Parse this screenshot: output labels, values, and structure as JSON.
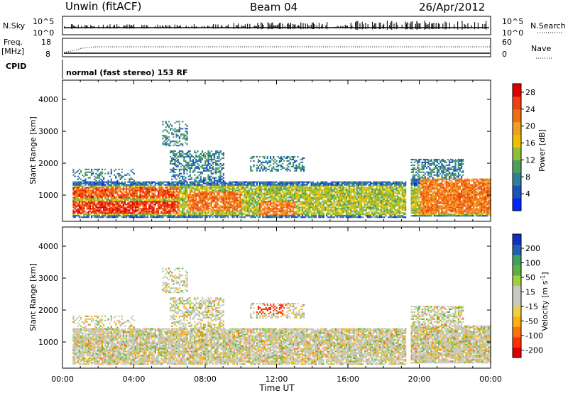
{
  "header": {
    "station": "Unwin (fitACF)",
    "beam": "Beam 04",
    "date": "26/Apr/2012"
  },
  "strip": {
    "nsky_label": "N.Sky",
    "nsky_ticks": [
      "10^5",
      "10^0"
    ],
    "nsearch_label": "N.Search",
    "nsearch_ticks": [
      "10^5",
      "10^0"
    ],
    "freq_label": "Freq.",
    "freq_unit": "[MHz]",
    "freq_ticks": [
      "18",
      "8"
    ],
    "nave_label": "Nave",
    "nave_ticks": [
      "60",
      "0"
    ],
    "cpid_label": "CPID",
    "cpid_text": "normal (fast stereo) 153 RF"
  },
  "colors": {
    "power": [
      "#0026ff",
      "#1f4fb8",
      "#2f7f96",
      "#4f9f5a",
      "#8fbf3a",
      "#f0c000",
      "#f0a020",
      "#f07010",
      "#f04010",
      "#e00000"
    ],
    "velocity": [
      "#e00000",
      "#ff3000",
      "#ff7010",
      "#ffb010",
      "#f0d040",
      "#c8c8c0",
      "#c8c8c0",
      "#a0d040",
      "#60b040",
      "#40a060",
      "#2060b0",
      "#1030c0"
    ],
    "gray_scatter": "#c8c8c0"
  },
  "chart_data": [
    {
      "type": "heatmap",
      "name": "power",
      "ylabel": "Slant Range [km]",
      "xlabel": "",
      "x_ticks": [
        "00:00",
        "04:00",
        "08:00",
        "12:00",
        "16:00",
        "20:00",
        "00:00"
      ],
      "xlim_hours": [
        0,
        24
      ],
      "y_ticks": [
        1000,
        2000,
        3000,
        4000
      ],
      "ylim_km": [
        180,
        4600
      ],
      "colorbar": {
        "label": "Power [dB]",
        "ticks": [
          4,
          8,
          12,
          16,
          20,
          24,
          28
        ],
        "range": [
          0,
          30
        ]
      },
      "features": [
        {
          "t": [
            0.5,
            6.5
          ],
          "km": [
            380,
            1350
          ],
          "note": "strong band"
        },
        {
          "t": [
            7.5,
            10.0
          ],
          "km": [
            450,
            1400
          ]
        },
        {
          "t": [
            11.0,
            13.0
          ],
          "km": [
            350,
            900
          ]
        },
        {
          "t": [
            19.5,
            24.0
          ],
          "km": [
            380,
            2000
          ]
        }
      ]
    },
    {
      "type": "heatmap",
      "name": "velocity",
      "ylabel": "Slant Range [km]",
      "xlabel": "Time UT",
      "x_ticks": [
        "00:00",
        "04:00",
        "08:00",
        "12:00",
        "16:00",
        "20:00",
        "00:00"
      ],
      "xlim_hours": [
        0,
        24
      ],
      "y_ticks": [
        1000,
        2000,
        3000,
        4000
      ],
      "ylim_km": [
        180,
        4600
      ],
      "colorbar": {
        "label": "Velocity [m s^-1]",
        "ticks": [
          200,
          100,
          50,
          15,
          -15,
          -50,
          -100,
          -200
        ],
        "range": [
          -250,
          250
        ]
      },
      "features": [
        {
          "t": [
            10.7,
            12.5
          ],
          "km": [
            1900,
            2100
          ],
          "note": "red patch"
        },
        {
          "t": [
            0.5,
            24.0
          ],
          "km": [
            250,
            1600
          ],
          "note": "gray ground scatter"
        }
      ]
    }
  ],
  "texts": {
    "power_cb_label": "Power [dB]",
    "velocity_cb_label_main": "Velocity [m s",
    "velocity_cb_label_sup": "-1",
    "velocity_cb_label_end": "]",
    "xlabel": "Time UT"
  }
}
